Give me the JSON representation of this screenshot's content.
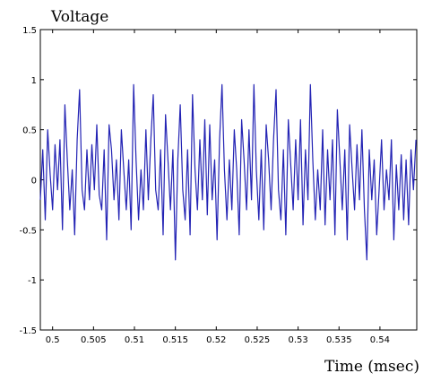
{
  "chart_data": {
    "type": "line",
    "title": "",
    "xlabel": "Time (msec)",
    "ylabel": "Voltage",
    "xlim": [
      0.4985,
      0.5445
    ],
    "ylim": [
      -1.5,
      1.5
    ],
    "xticks": [
      0.5,
      0.505,
      0.51,
      0.515,
      0.52,
      0.525,
      0.53,
      0.535,
      0.54
    ],
    "xtick_labels": [
      "0.5",
      "0.505",
      "0.51",
      "0.515",
      "0.52",
      "0.525",
      "0.53",
      "0.535",
      "0.54"
    ],
    "yticks": [
      -1.5,
      -1,
      -0.5,
      0,
      0.5,
      1,
      1.5
    ],
    "ytick_labels": [
      "-1.5",
      "-1",
      "-0.5",
      "0",
      "0.5",
      "1",
      "1.5"
    ],
    "grid": false,
    "line_color": "#2323b4",
    "series": [
      {
        "x": [
          0.4985,
          0.4988,
          0.4991,
          0.4994,
          0.4997,
          0.5,
          0.5003,
          0.5006,
          0.5009,
          0.5012,
          0.5015,
          0.5018,
          0.5021,
          0.5024,
          0.5027,
          0.503,
          0.5033,
          0.5036,
          0.5039,
          0.5042,
          0.5045,
          0.5048,
          0.5051,
          0.5054,
          0.5057,
          0.506,
          0.5063,
          0.5066,
          0.5069,
          0.5072,
          0.5075,
          0.5078,
          0.5081,
          0.5084,
          0.5087,
          0.509,
          0.5093,
          0.5096,
          0.5099,
          0.5102,
          0.5105,
          0.5108,
          0.5111,
          0.5114,
          0.5117,
          0.512,
          0.5123,
          0.5126,
          0.5129,
          0.5132,
          0.5135,
          0.5138,
          0.5141,
          0.5144,
          0.5147,
          0.515,
          0.5153,
          0.5156,
          0.5159,
          0.5162,
          0.5165,
          0.5168,
          0.5171,
          0.5174,
          0.5177,
          0.518,
          0.5183,
          0.5186,
          0.5189,
          0.5192,
          0.5195,
          0.5198,
          0.5201,
          0.5204,
          0.5207,
          0.521,
          0.5213,
          0.5216,
          0.5219,
          0.5222,
          0.5225,
          0.5228,
          0.5231,
          0.5234,
          0.5237,
          0.524,
          0.5243,
          0.5246,
          0.5249,
          0.5252,
          0.5255,
          0.5258,
          0.5261,
          0.5264,
          0.5267,
          0.527,
          0.5273,
          0.5276,
          0.5279,
          0.5282,
          0.5285,
          0.5288,
          0.5291,
          0.5294,
          0.5297,
          0.53,
          0.5303,
          0.5306,
          0.5309,
          0.5312,
          0.5315,
          0.5318,
          0.5321,
          0.5324,
          0.5327,
          0.533,
          0.5333,
          0.5336,
          0.5339,
          0.5342,
          0.5345,
          0.5348,
          0.5351,
          0.5354,
          0.5357,
          0.536,
          0.5363,
          0.5366,
          0.5369,
          0.5372,
          0.5375,
          0.5378,
          0.5381,
          0.5384,
          0.5387,
          0.539,
          0.5393,
          0.5396,
          0.5399,
          0.5402,
          0.5405,
          0.5408,
          0.5411,
          0.5414,
          0.5417,
          0.542,
          0.5423,
          0.5426,
          0.5429,
          0.5432,
          0.5435,
          0.5438,
          0.5441,
          0.5444
        ],
        "y": [
          -0.2,
          0.3,
          -0.4,
          0.5,
          0.05,
          -0.3,
          0.35,
          -0.1,
          0.4,
          -0.5,
          0.75,
          0.2,
          -0.3,
          0.1,
          -0.55,
          0.4,
          0.9,
          -0.1,
          -0.3,
          0.3,
          -0.2,
          0.35,
          -0.1,
          0.55,
          -0.15,
          -0.3,
          0.3,
          -0.6,
          0.55,
          0.3,
          -0.2,
          0.2,
          -0.4,
          0.5,
          0.1,
          -0.3,
          0.2,
          -0.5,
          0.95,
          0.2,
          -0.4,
          0.1,
          -0.3,
          0.5,
          -0.2,
          0.4,
          0.85,
          -0.1,
          -0.3,
          0.3,
          -0.55,
          0.65,
          0.2,
          -0.3,
          0.3,
          -0.8,
          0.2,
          0.75,
          -0.1,
          -0.4,
          0.3,
          -0.55,
          0.85,
          0.1,
          -0.3,
          0.4,
          -0.2,
          0.6,
          -0.35,
          0.55,
          -0.2,
          0.2,
          -0.6,
          0.4,
          0.95,
          0.1,
          -0.4,
          0.2,
          -0.3,
          0.5,
          0.1,
          -0.55,
          0.6,
          0.2,
          -0.3,
          0.5,
          -0.2,
          0.95,
          0.1,
          -0.4,
          0.3,
          -0.5,
          0.55,
          0.2,
          -0.3,
          0.4,
          0.9,
          -0.1,
          -0.4,
          0.3,
          -0.55,
          0.6,
          0.15,
          -0.3,
          0.4,
          -0.2,
          0.6,
          -0.45,
          0.3,
          -0.2,
          0.95,
          0.2,
          -0.4,
          0.1,
          -0.3,
          0.5,
          -0.45,
          0.3,
          -0.2,
          0.4,
          -0.55,
          0.7,
          0.2,
          -0.3,
          0.3,
          -0.6,
          0.55,
          0.1,
          -0.3,
          0.35,
          -0.2,
          0.5,
          -0.3,
          -0.8,
          0.3,
          -0.2,
          0.2,
          -0.55,
          -0.1,
          0.4,
          -0.3,
          0.1,
          -0.2,
          0.4,
          -0.6,
          0.15,
          -0.3,
          0.25,
          -0.4,
          0.2,
          -0.45,
          0.3,
          -0.1,
          0.4
        ]
      }
    ]
  }
}
